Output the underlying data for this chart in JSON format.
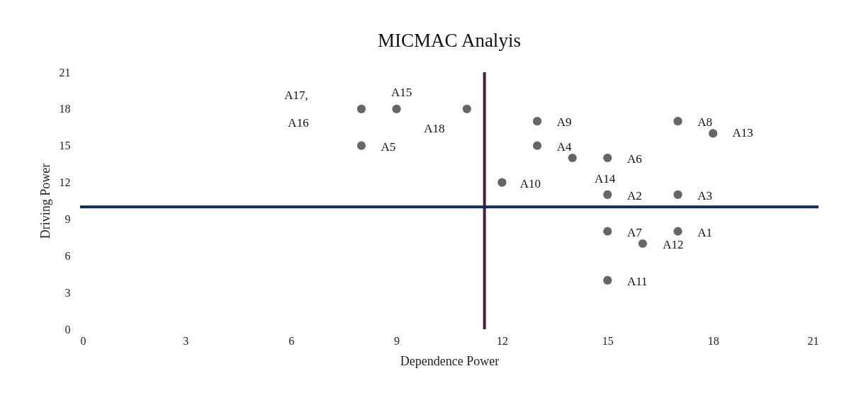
{
  "chart_data": {
    "type": "scatter",
    "title": "MICMAC Analyis",
    "xlabel": "Dependence Power",
    "ylabel": "Driving Power",
    "xlim": [
      0,
      21
    ],
    "xticks": [
      0,
      3,
      6,
      9,
      12,
      15,
      18,
      21
    ],
    "ylim": [
      0,
      21
    ],
    "yticks": [
      0,
      3,
      6,
      9,
      12,
      15,
      18,
      21
    ],
    "grid": false,
    "marker": "circle",
    "series": [
      {
        "color": "#666666",
        "x": [
          17,
          15,
          17,
          13,
          8,
          15,
          15,
          17,
          13,
          12,
          15,
          16,
          18,
          14,
          9,
          8,
          11
        ],
        "values": [
          8,
          11,
          11,
          15,
          15,
          14,
          8,
          17,
          17,
          12,
          4,
          7,
          16,
          14,
          18,
          18,
          18
        ]
      }
    ],
    "ref_lines": [
      {
        "axis": "x",
        "value": 11.5,
        "color": "#4b1a4a"
      },
      {
        "axis": "y",
        "value": 10,
        "color": "#0e2a5c"
      }
    ],
    "annotations": [
      {
        "text": "A1",
        "x": 17,
        "y": 8
      },
      {
        "text": "A2",
        "x": 15,
        "y": 11
      },
      {
        "text": "A3",
        "x": 17,
        "y": 11
      },
      {
        "text": "A4",
        "x": 13,
        "y": 15
      },
      {
        "text": "A5",
        "x": 8,
        "y": 15
      },
      {
        "text": "A6",
        "x": 15,
        "y": 14
      },
      {
        "text": "A7",
        "x": 15,
        "y": 8
      },
      {
        "text": "A8",
        "x": 17,
        "y": 17
      },
      {
        "text": "A9",
        "x": 13,
        "y": 17
      },
      {
        "text": "A10",
        "x": 12,
        "y": 12
      },
      {
        "text": "A11",
        "x": 15,
        "y": 4
      },
      {
        "text": "A12",
        "x": 16,
        "y": 7
      },
      {
        "text": "A13",
        "x": 18,
        "y": 16
      },
      {
        "text": "A14",
        "x": 14,
        "y": 14
      },
      {
        "text": "A15",
        "x": 9,
        "y": 18
      },
      "A17,",
      "A16",
      {
        "text": "A18",
        "x": 11,
        "y": 18
      }
    ]
  }
}
